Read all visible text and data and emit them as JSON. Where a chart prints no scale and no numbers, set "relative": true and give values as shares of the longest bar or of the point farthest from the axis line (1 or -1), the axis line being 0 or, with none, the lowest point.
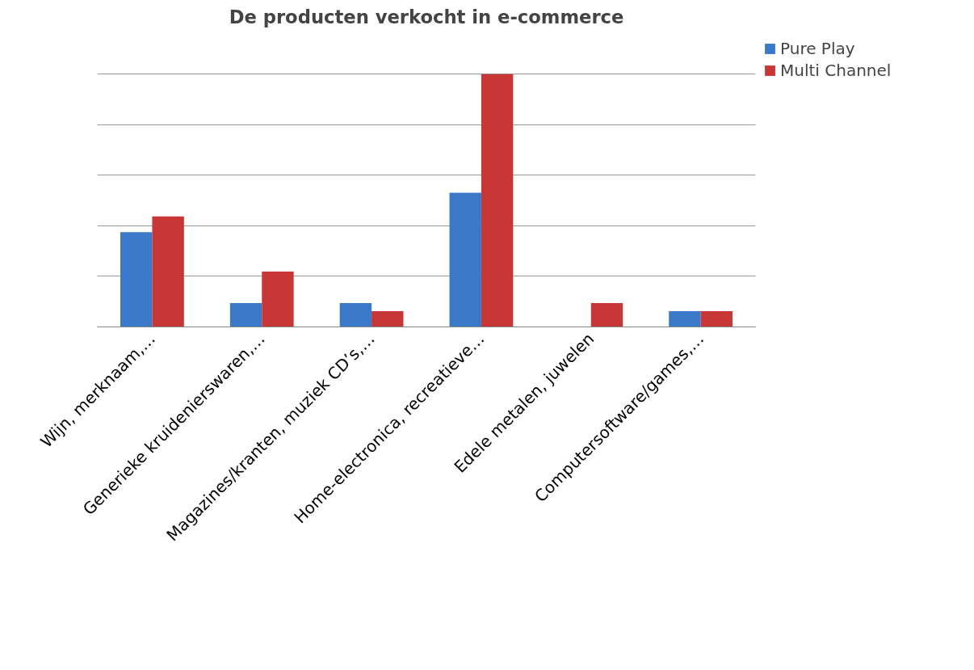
{
  "chart_data": {
    "type": "bar",
    "title": "De producten verkocht in e-commerce",
    "categories": [
      "Wijn, merknaam,…",
      "Generieke kruidenierswaren,…",
      "Magazines/kranten, muziek CD’s,…",
      "Home-electronica, recreatieve…",
      "Edele metalen, juwelen",
      "Computersoftware/games,…"
    ],
    "relative": true,
    "grid": "y",
    "legend": "right",
    "series": [
      {
        "name": "Pure Play",
        "color": "#3a78c9",
        "values": [
          0.375,
          0.094,
          0.094,
          0.531,
          0,
          0.0625
        ]
      },
      {
        "name": "Multi Channel",
        "color": "#c93636",
        "values": [
          0.4375,
          0.219,
          0.0625,
          1,
          0.094,
          0.0625
        ]
      }
    ]
  }
}
